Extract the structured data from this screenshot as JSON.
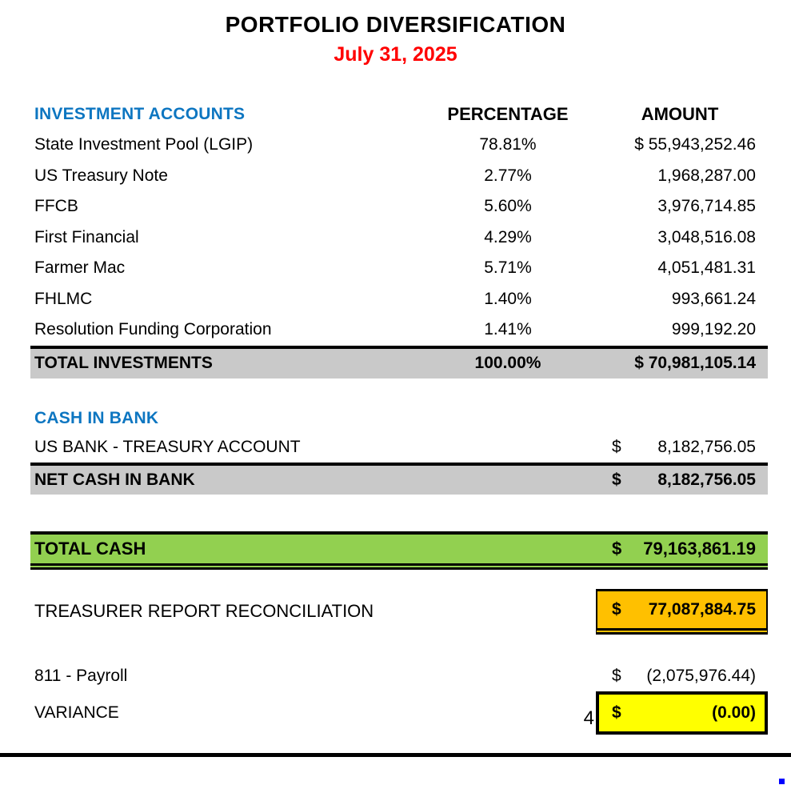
{
  "title": "PORTFOLIO DIVERSIFICATION",
  "date": "July 31, 2025",
  "colors": {
    "section_header_blue": "#0D76C1",
    "date_red": "#FF0000",
    "total_row_gray": "#C9C9C9",
    "total_cash_green": "#92D050",
    "reconciliation_orange": "#FFC000",
    "variance_yellow": "#FFFF00",
    "marker_blue": "#0000FF"
  },
  "investments": {
    "section_label": "INVESTMENT ACCOUNTS",
    "col_percentage": "PERCENTAGE",
    "col_amount": "AMOUNT",
    "rows": [
      {
        "name": "State Investment Pool (LGIP)",
        "percentage": "78.81%",
        "amount": "$ 55,943,252.46"
      },
      {
        "name": "US Treasury Note",
        "percentage": "2.77%",
        "amount": "1,968,287.00"
      },
      {
        "name": "FFCB",
        "percentage": "5.60%",
        "amount": "3,976,714.85"
      },
      {
        "name": "First Financial",
        "percentage": "4.29%",
        "amount": "3,048,516.08"
      },
      {
        "name": "Farmer Mac",
        "percentage": "5.71%",
        "amount": "4,051,481.31"
      },
      {
        "name": "FHLMC",
        "percentage": "1.40%",
        "amount": "993,661.24"
      },
      {
        "name": "Resolution Funding Corporation",
        "percentage": "1.41%",
        "amount": "999,192.20"
      }
    ],
    "total": {
      "label": "TOTAL INVESTMENTS",
      "percentage": "100.00%",
      "amount": "$ 70,981,105.14"
    }
  },
  "cash_in_bank": {
    "section_label": "CASH IN BANK",
    "rows": [
      {
        "name": "US BANK - TREASURY ACCOUNT",
        "currency": "$",
        "amount": "8,182,756.05"
      }
    ],
    "net": {
      "label": "NET CASH IN BANK",
      "currency": "$",
      "amount": "8,182,756.05"
    }
  },
  "total_cash": {
    "label": "TOTAL CASH",
    "currency": "$",
    "amount": "79,163,861.19"
  },
  "reconciliation": {
    "label": "TREASURER REPORT RECONCILIATION",
    "currency": "$",
    "amount": "77,087,884.75"
  },
  "payroll": {
    "label": "811 - Payroll",
    "currency": "$",
    "amount": "(2,075,976.44)"
  },
  "variance": {
    "label": "VARIANCE",
    "page_marker": "4",
    "currency": "$",
    "amount": "(0.00)"
  }
}
